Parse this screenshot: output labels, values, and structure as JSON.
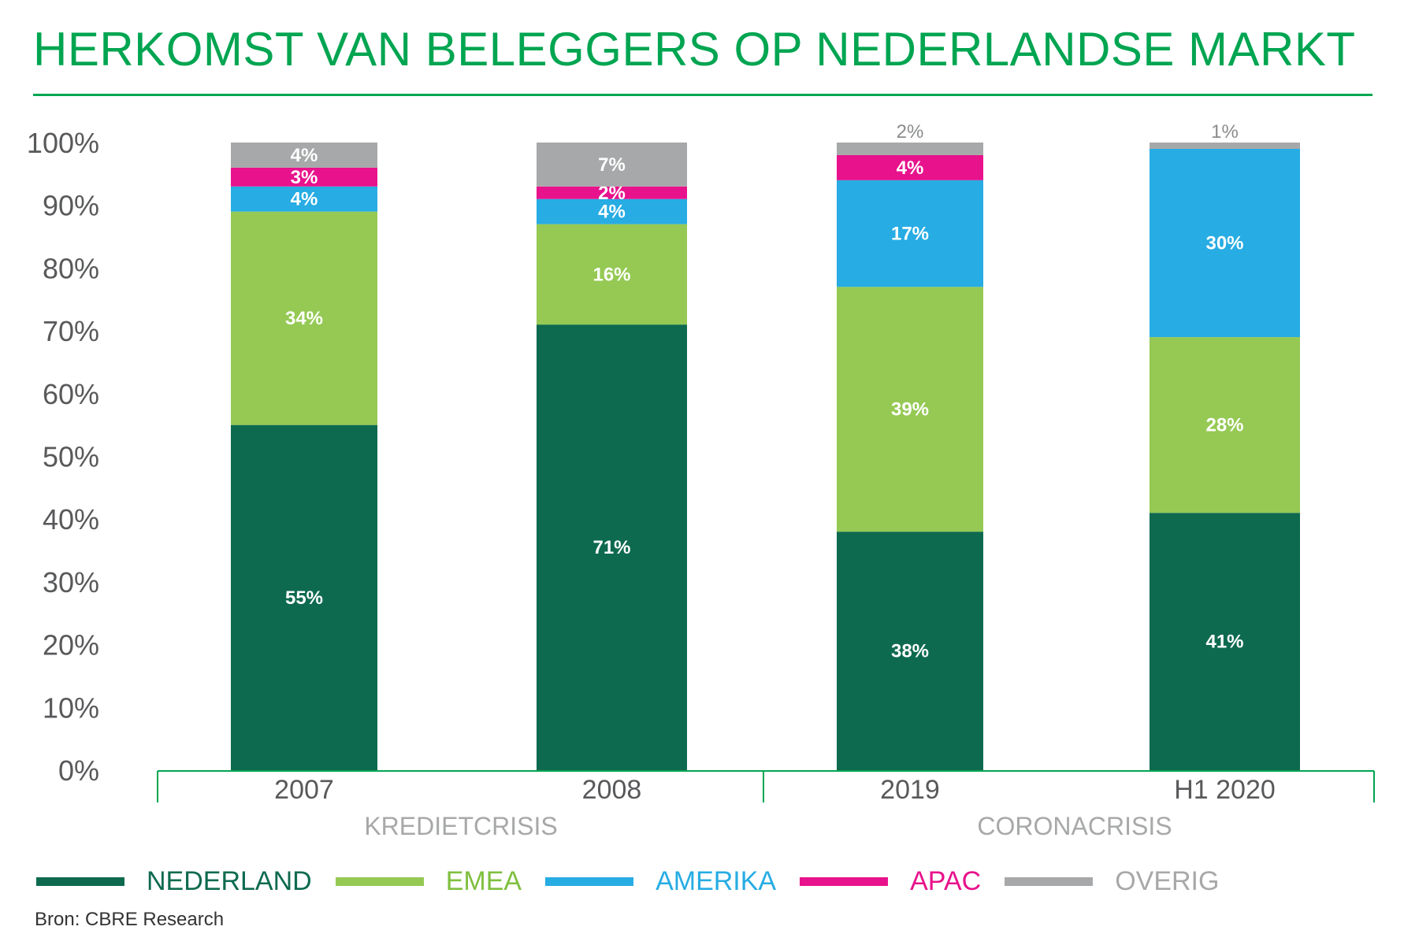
{
  "chart_data": {
    "type": "bar",
    "stacked": true,
    "title": "HERKOMST VAN BELEGGERS OP NEDERLANDSE MARKT",
    "categories": [
      "2007",
      "2008",
      "2019",
      "H1 2020"
    ],
    "groups": [
      {
        "label": "KREDIETCRISIS",
        "categories": [
          "2007",
          "2008"
        ]
      },
      {
        "label": "CORONACRISIS",
        "categories": [
          "2019",
          "H1 2020"
        ]
      }
    ],
    "series": [
      {
        "name": "NEDERLAND",
        "color": "#0e6a4f",
        "values": [
          55,
          71,
          38,
          41
        ],
        "labels": [
          "55%",
          "71%",
          "38%",
          "41%"
        ]
      },
      {
        "name": "EMEA",
        "color": "#95c954",
        "values": [
          34,
          16,
          39,
          28
        ],
        "labels": [
          "34%",
          "16%",
          "39%",
          "28%"
        ]
      },
      {
        "name": "AMERIKA",
        "color": "#27ace3",
        "values": [
          4,
          4,
          17,
          30
        ],
        "labels": [
          "4%",
          "4%",
          "17%",
          "30%"
        ]
      },
      {
        "name": "APAC",
        "color": "#e8128c",
        "values": [
          3,
          2,
          4,
          0
        ],
        "labels": [
          "3%",
          "2%",
          "4%",
          ""
        ]
      },
      {
        "name": "OVERIG",
        "color": "#a7a8a9",
        "values": [
          4,
          7,
          2,
          1
        ],
        "labels": [
          "4%",
          "7%",
          "2%",
          "1%"
        ]
      }
    ],
    "y_ticks": [
      "0%",
      "10%",
      "20%",
      "30%",
      "40%",
      "50%",
      "60%",
      "70%",
      "80%",
      "90%",
      "100%"
    ],
    "ylim": [
      0,
      100
    ],
    "grid": false,
    "legend": "bottom"
  },
  "source": "Bron: CBRE Research"
}
